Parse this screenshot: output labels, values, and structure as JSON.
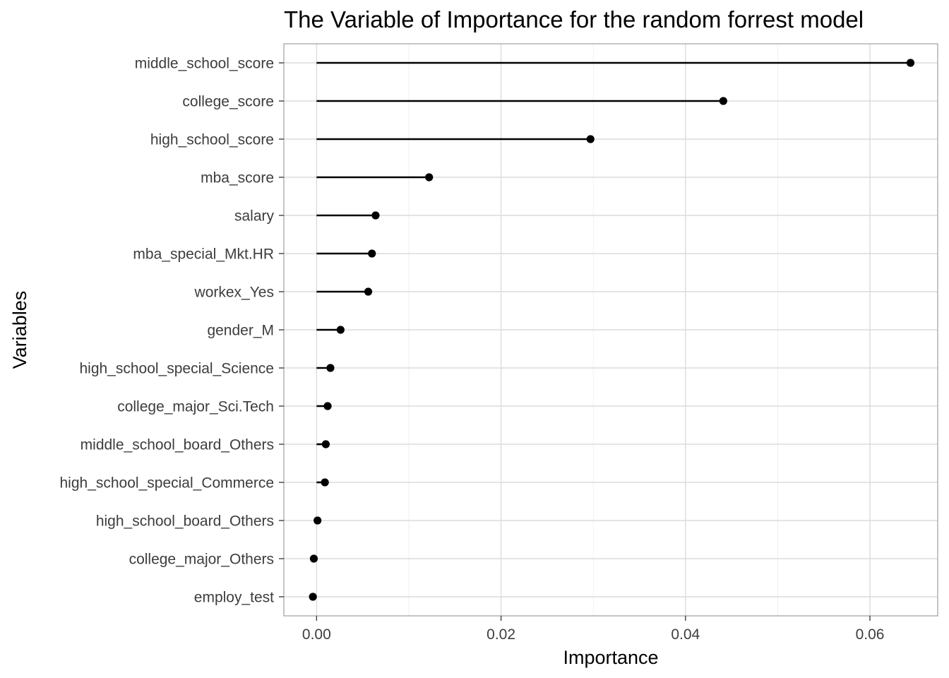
{
  "chart_data": {
    "type": "lollipop",
    "title": "The Variable of Importance for the random forrest model",
    "xlabel": "Importance",
    "ylabel": "Variables",
    "xlim": [
      -0.00355,
      0.06735
    ],
    "x_ticks": [
      0.0,
      0.02,
      0.04,
      0.06
    ],
    "x_tick_labels": [
      "0.00",
      "0.02",
      "0.04",
      "0.06"
    ],
    "x_minor_ticks": [
      0.01,
      0.03,
      0.05
    ],
    "grid": true,
    "orientation": "horizontal",
    "categories": [
      "middle_school_score",
      "college_score",
      "high_school_score",
      "mba_score",
      "salary",
      "mba_special_Mkt.HR",
      "workex_Yes",
      "gender_M",
      "high_school_special_Science",
      "college_major_Sci.Tech",
      "middle_school_board_Others",
      "high_school_special_Commerce",
      "high_school_board_Others",
      "college_major_Others",
      "employ_test"
    ],
    "values": [
      0.0644,
      0.0441,
      0.0297,
      0.0122,
      0.0064,
      0.006,
      0.0056,
      0.0026,
      0.0015,
      0.0012,
      0.001,
      0.0009,
      0.0001,
      -0.0003,
      -0.0004
    ],
    "colors": {
      "marks": "#000000",
      "grid_major": "#dcdcdc",
      "grid_minor": "#ececec",
      "panel_border": "#a6a6a6"
    }
  }
}
